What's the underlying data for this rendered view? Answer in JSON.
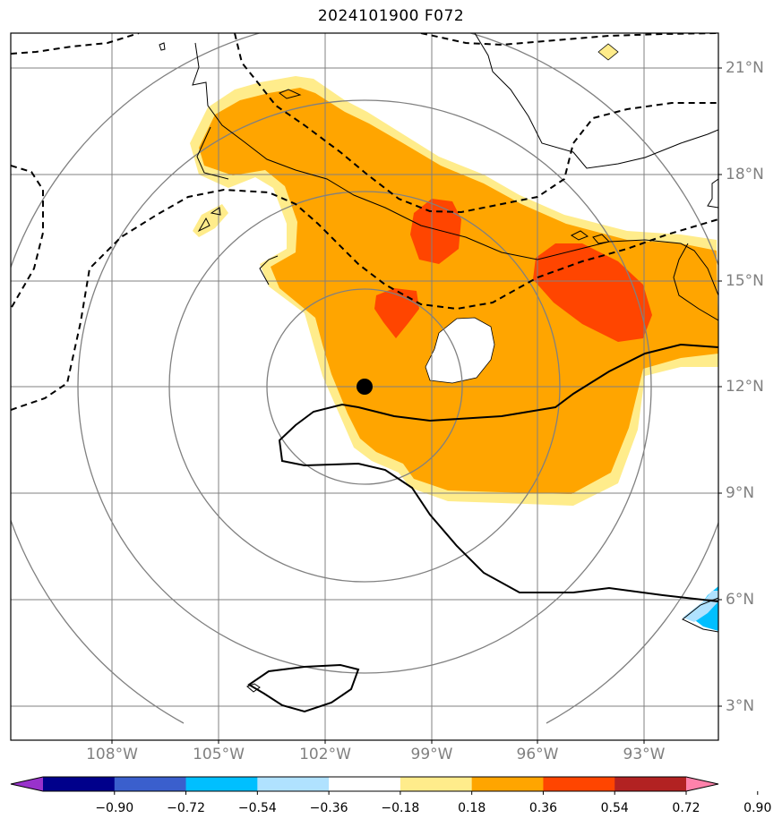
{
  "title": "2024101900 F072",
  "lat_labels": [
    "21°N",
    "18°N",
    "15°N",
    "12°N",
    "9°N",
    "6°N",
    "3°N"
  ],
  "lon_labels": [
    "108°W",
    "105°W",
    "102°W",
    "99°W",
    "96°W",
    "93°W"
  ],
  "storm_center": {
    "lat": 12.0,
    "lon": -101.0
  },
  "colorbar": {
    "ticks": [
      "−0.90",
      "−0.72",
      "−0.54",
      "−0.36",
      "−0.18",
      "0.18",
      "0.36",
      "0.54",
      "0.72",
      "0.90"
    ],
    "colors": [
      "#9932CC",
      "#00008B",
      "#3A5FCD",
      "#00BFFF",
      "#B0E2FF",
      "#FFFFFF",
      "#FFEC8B",
      "#FFA500",
      "#FF4500",
      "#B22222",
      "#FF82AB"
    ]
  },
  "fill_colors": {
    "light_yellow": "#FFEC8B",
    "orange": "#FFA500",
    "red_orange": "#FF4500",
    "sky_blue": "#00BFFF",
    "light_blue": "#B0E2FF"
  },
  "grid_color": "#808080"
}
